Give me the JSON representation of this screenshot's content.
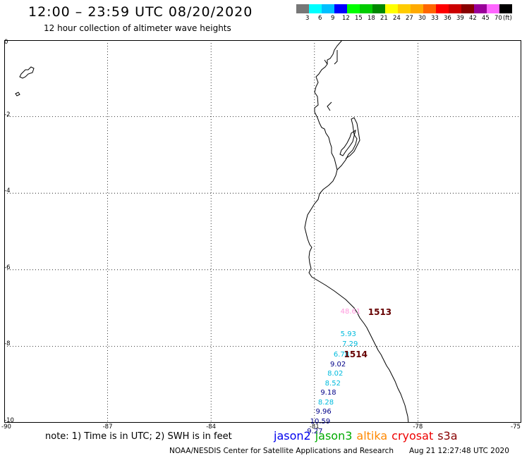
{
  "header": {
    "title": "12:00 – 23:59 UTC 08/20/2020",
    "subtitle": "12 hour collection of altimeter wave heights"
  },
  "color_scale": {
    "unit": "(ft)",
    "labels": [
      "3",
      "6",
      "9",
      "12",
      "15",
      "18",
      "21",
      "24",
      "27",
      "30",
      "33",
      "36",
      "39",
      "42",
      "45",
      "70"
    ],
    "colors": [
      "#777777",
      "#00ffff",
      "#00bfff",
      "#0000ff",
      "#00ff00",
      "#00cc00",
      "#008800",
      "#ffff00",
      "#ffcc00",
      "#ffaa00",
      "#ff6600",
      "#ff0000",
      "#cc0000",
      "#880000",
      "#990099",
      "#ff66ff",
      "#000000"
    ]
  },
  "axes": {
    "lat_labels": [
      "0",
      "-2",
      "-4",
      "-6",
      "-8",
      "-10"
    ],
    "lon_labels": [
      "-90",
      "-87",
      "-84",
      "-81",
      "-78",
      "-75"
    ]
  },
  "observations": [
    {
      "value": "48.61",
      "lon": -80.0,
      "lat": -7.12,
      "color": "#ff99dd"
    },
    {
      "value": "5.93",
      "lon": -80.0,
      "lat": -7.72,
      "color": "#00bbdd"
    },
    {
      "value": "7.29",
      "lon": -79.95,
      "lat": -7.97,
      "color": "#00bbdd"
    },
    {
      "value": "6.78",
      "lon": -80.2,
      "lat": -8.25,
      "color": "#00bbdd"
    },
    {
      "value": "9.02",
      "lon": -80.3,
      "lat": -8.5,
      "color": "#000088"
    },
    {
      "value": "8.02",
      "lon": -80.38,
      "lat": -8.75,
      "color": "#00bbdd"
    },
    {
      "value": "8.52",
      "lon": -80.45,
      "lat": -9.0,
      "color": "#00bbdd"
    },
    {
      "value": "9.18",
      "lon": -80.58,
      "lat": -9.25,
      "color": "#000088"
    },
    {
      "value": "8.28",
      "lon": -80.65,
      "lat": -9.5,
      "color": "#00bbdd"
    },
    {
      "value": "9.96",
      "lon": -80.72,
      "lat": -9.75,
      "color": "#000088"
    },
    {
      "value": "10.59",
      "lon": -80.88,
      "lat": -10.0,
      "color": "#000088"
    },
    {
      "value": "9.27",
      "lon": -80.97,
      "lat": -10.25,
      "color": "#000088"
    }
  ],
  "passes": [
    {
      "id": "1513",
      "lon": -79.2,
      "lat": -7.12
    },
    {
      "id": "1514",
      "lon": -79.9,
      "lat": -8.23
    }
  ],
  "footer": {
    "note": "note: 1) Time is in UTC; 2) SWH is in feet",
    "missions": [
      {
        "name": "jason2",
        "color": "#0000ee"
      },
      {
        "name": "jason3",
        "color": "#00aa00"
      },
      {
        "name": "altika",
        "color": "#ff8800"
      },
      {
        "name": "cryosat",
        "color": "#ee0000"
      },
      {
        "name": "s3a",
        "color": "#880000"
      }
    ],
    "credit": "NOAA/NESDIS Center for Satellite Applications and Research",
    "timestamp": "Aug 21 12:27:48 UTC 2020"
  }
}
